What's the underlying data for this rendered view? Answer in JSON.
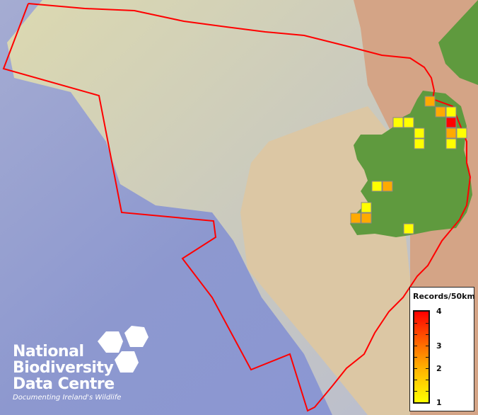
{
  "map": {
    "colors": {
      "sea_deep": "#7f8fd0",
      "shelf": "#d9d6b0",
      "land_terrain": "#d5a387",
      "ireland_land": "#5f9a3e",
      "boundary": "#ff0000",
      "cell_border": "#888888"
    },
    "grid_cells": [
      {
        "col": 7,
        "row": 0,
        "records": 2
      },
      {
        "col": 8,
        "row": 1,
        "records": 2
      },
      {
        "col": 9,
        "row": 1,
        "records": 1
      },
      {
        "col": 9,
        "row": 2,
        "records": 4
      },
      {
        "col": 4,
        "row": 2,
        "records": 1
      },
      {
        "col": 5,
        "row": 2,
        "records": 1
      },
      {
        "col": 6,
        "row": 3,
        "records": 1
      },
      {
        "col": 6,
        "row": 4,
        "records": 1
      },
      {
        "col": 9,
        "row": 3,
        "records": 2
      },
      {
        "col": 10,
        "row": 3,
        "records": 1
      },
      {
        "col": 9,
        "row": 4,
        "records": 1
      },
      {
        "col": 2,
        "row": 8,
        "records": 1
      },
      {
        "col": 3,
        "row": 8,
        "records": 2
      },
      {
        "col": 1,
        "row": 10,
        "records": 1
      },
      {
        "col": 0,
        "row": 11,
        "records": 2
      },
      {
        "col": 1,
        "row": 11,
        "records": 2
      },
      {
        "col": 5,
        "row": 12,
        "records": 1
      }
    ]
  },
  "legend": {
    "title": "Records/50km",
    "labels": [
      "4",
      "3",
      "2",
      "1"
    ],
    "min": 1,
    "max": 4,
    "colors": [
      "#ffff00",
      "#ffb000",
      "#ff7000",
      "#ff0000"
    ]
  },
  "logo": {
    "lines": [
      "National",
      "Biodiversity",
      "Data Centre"
    ],
    "tagline": "Documenting Ireland's Wildlife"
  }
}
